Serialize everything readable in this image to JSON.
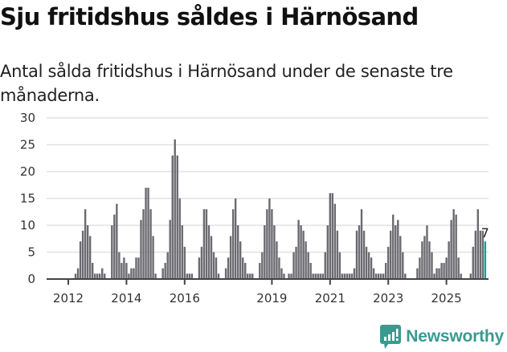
{
  "header": {
    "title": "Sju fritidshus såldes i Härnösand",
    "subtitle": "Antal sålda fritidshus i Härnösand under de senaste tre månaderna."
  },
  "footer": {
    "brand": "Newsworthy",
    "logo_icon": "bar-chart-speech-bubble-icon"
  },
  "colors": {
    "bar": "#6b6a70",
    "highlight": "#1a9e95",
    "grid": "#e2e2e2",
    "axis": "#444444",
    "brand": "#3a9a90"
  },
  "chart_data": {
    "type": "bar",
    "title": "Sju fritidshus såldes i Härnösand",
    "subtitle": "Antal sålda fritidshus i Härnösand under de senaste tre månaderna.",
    "xlabel": "",
    "ylabel": "",
    "ylim": [
      0,
      30
    ],
    "yticks": [
      0,
      5,
      10,
      15,
      20,
      25,
      30
    ],
    "xticks": [
      "2012",
      "2014",
      "2016",
      "2019",
      "2021",
      "2023",
      "2025"
    ],
    "grid": true,
    "legend": null,
    "annotation": {
      "label": "7",
      "target": "last bar"
    },
    "x_start": "2011-04",
    "x_end": "2025-09",
    "frequency": "monthly (rolling 3-month totals)",
    "values": [
      0,
      0,
      0,
      0,
      0,
      0,
      0,
      0,
      0,
      0,
      0,
      0,
      1,
      2,
      7,
      9,
      13,
      10,
      8,
      3,
      1,
      1,
      1,
      2,
      1,
      0,
      0,
      10,
      12,
      14,
      5,
      3,
      4,
      3,
      1,
      2,
      2,
      4,
      4,
      11,
      13,
      17,
      17,
      13,
      8,
      1,
      0,
      0,
      2,
      3,
      5,
      11,
      23,
      26,
      23,
      15,
      10,
      6,
      1,
      1,
      1,
      0,
      0,
      4,
      6,
      13,
      13,
      10,
      8,
      5,
      4,
      1,
      0,
      0,
      2,
      4,
      8,
      13,
      15,
      10,
      7,
      4,
      3,
      1,
      1,
      1,
      0,
      0,
      3,
      5,
      10,
      13,
      15,
      13,
      10,
      7,
      4,
      2,
      1,
      0,
      1,
      1,
      5,
      6,
      11,
      10,
      9,
      7,
      5,
      3,
      1,
      1,
      1,
      1,
      1,
      5,
      10,
      16,
      16,
      14,
      9,
      5,
      1,
      1,
      1,
      1,
      1,
      2,
      9,
      10,
      13,
      9,
      6,
      5,
      4,
      2,
      1,
      1,
      1,
      1,
      3,
      6,
      9,
      12,
      10,
      11,
      8,
      5,
      1,
      0,
      0,
      0,
      0,
      2,
      4,
      7,
      8,
      10,
      7,
      5,
      1,
      2,
      2,
      3,
      3,
      4,
      7,
      11,
      13,
      12,
      4,
      1,
      0,
      0,
      0,
      1,
      6,
      9,
      13,
      9,
      9,
      7
    ],
    "highlight_index": -1,
    "highlight_value": 7
  }
}
